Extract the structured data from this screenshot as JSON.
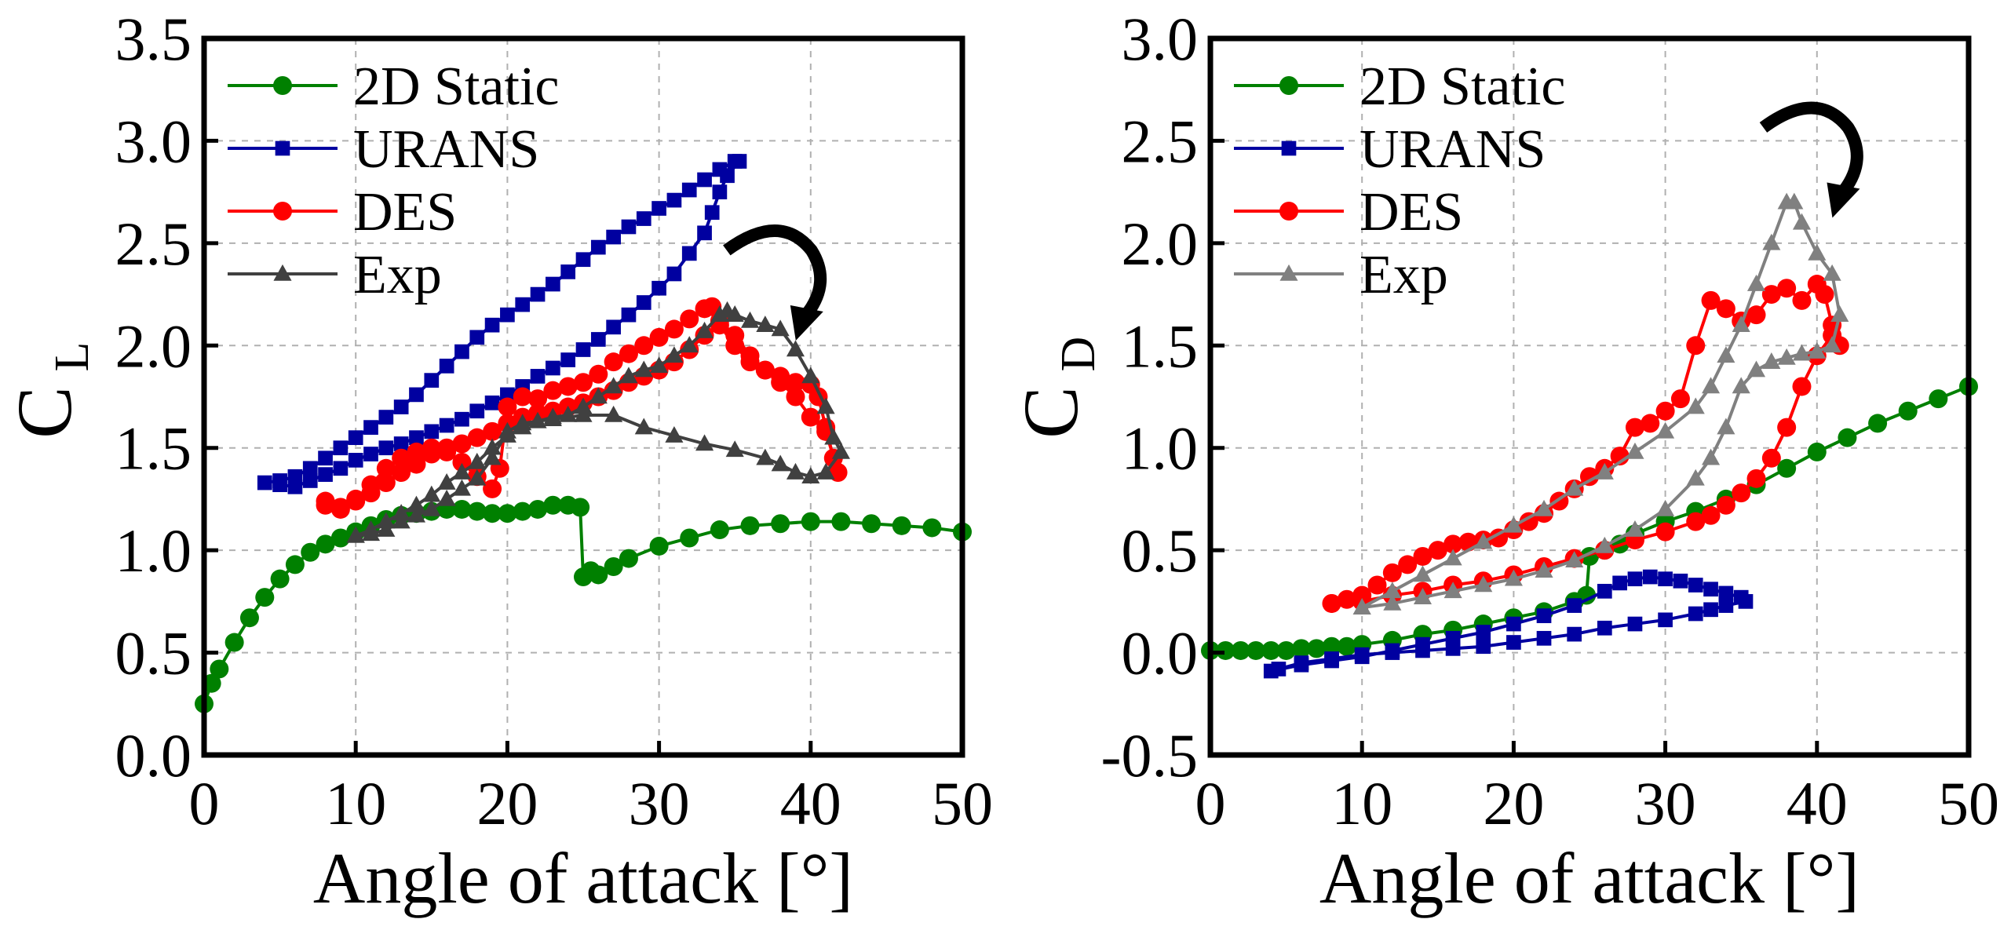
{
  "chart_data": [
    {
      "type": "line",
      "xlabel": "Angle of attack [°]",
      "ylabel": "C",
      "ylabel_sub": "L",
      "xlim": [
        0,
        50
      ],
      "ylim": [
        0,
        3.5
      ],
      "xticks": [
        "0",
        "10",
        "20",
        "30",
        "40",
        "50"
      ],
      "yticks": [
        "0.0",
        "0.5",
        "1.0",
        "1.5",
        "2.0",
        "2.5",
        "3.0",
        "3.5"
      ],
      "grid": true,
      "legend_position": "top-left",
      "annotation": "clockwise-arrow",
      "series": [
        {
          "name": "2D Static",
          "color": "#008000",
          "marker": "circle",
          "x": [
            0,
            0.5,
            1,
            2,
            3,
            4,
            5,
            6,
            7,
            8,
            9,
            10,
            11,
            12,
            13,
            14,
            15,
            16,
            17,
            18,
            19,
            20,
            21,
            22,
            23,
            24,
            24.8,
            25,
            25.5,
            26,
            27,
            28,
            30,
            32,
            34,
            36,
            38,
            40,
            42,
            44,
            46,
            48,
            50
          ],
          "y": [
            0.25,
            0.35,
            0.42,
            0.55,
            0.67,
            0.77,
            0.86,
            0.93,
            0.99,
            1.03,
            1.06,
            1.09,
            1.12,
            1.15,
            1.17,
            1.18,
            1.19,
            1.2,
            1.2,
            1.19,
            1.18,
            1.18,
            1.19,
            1.2,
            1.22,
            1.22,
            1.21,
            0.87,
            0.9,
            0.88,
            0.92,
            0.96,
            1.02,
            1.06,
            1.1,
            1.12,
            1.13,
            1.14,
            1.14,
            1.13,
            1.12,
            1.11,
            1.09
          ]
        },
        {
          "name": "URANS",
          "color": "#0000a0",
          "marker": "square",
          "x": [
            4,
            5,
            6,
            7,
            8,
            9,
            10,
            11,
            12,
            13,
            14,
            15,
            16,
            17,
            18,
            19,
            20,
            21,
            22,
            23,
            24,
            25,
            26,
            27,
            28,
            29,
            30,
            31,
            32,
            33,
            34,
            35,
            35.3,
            34.5,
            34,
            33.5,
            33,
            32,
            31,
            30,
            29,
            28,
            27,
            26,
            25,
            24,
            23,
            22,
            21,
            20,
            19,
            18,
            17,
            16,
            15,
            14,
            13,
            12,
            11,
            10,
            9,
            8,
            7,
            6,
            5
          ],
          "y": [
            1.33,
            1.34,
            1.36,
            1.4,
            1.45,
            1.5,
            1.55,
            1.6,
            1.65,
            1.7,
            1.76,
            1.83,
            1.9,
            1.97,
            2.04,
            2.1,
            2.15,
            2.2,
            2.25,
            2.3,
            2.36,
            2.42,
            2.48,
            2.53,
            2.58,
            2.62,
            2.67,
            2.71,
            2.76,
            2.81,
            2.86,
            2.9,
            2.9,
            2.83,
            2.75,
            2.65,
            2.55,
            2.45,
            2.35,
            2.28,
            2.21,
            2.15,
            2.09,
            2.03,
            1.98,
            1.93,
            1.89,
            1.85,
            1.8,
            1.76,
            1.72,
            1.68,
            1.64,
            1.61,
            1.58,
            1.55,
            1.52,
            1.5,
            1.47,
            1.44,
            1.4,
            1.37,
            1.34,
            1.31,
            1.32
          ]
        },
        {
          "name": "DES",
          "color": "#ff0000",
          "marker": "circle",
          "x": [
            8,
            9,
            10,
            11,
            12,
            13,
            14,
            15,
            16,
            17,
            18,
            19,
            19.5,
            20,
            21,
            22,
            23,
            24,
            25,
            26,
            27,
            28,
            29,
            30,
            31,
            32,
            33,
            33.5,
            34,
            35,
            36,
            37,
            38,
            39,
            40,
            40.5,
            41,
            41.5,
            41.8,
            41,
            40,
            39,
            38,
            37,
            36,
            35,
            34,
            33,
            32,
            31,
            30,
            29,
            28,
            27,
            26,
            25,
            24,
            23,
            22,
            21,
            20,
            19,
            18,
            17,
            16,
            15,
            14,
            13,
            12,
            11,
            10,
            9,
            8
          ],
          "y": [
            1.22,
            1.21,
            1.25,
            1.32,
            1.4,
            1.45,
            1.48,
            1.5,
            1.48,
            1.43,
            1.36,
            1.3,
            1.4,
            1.7,
            1.75,
            1.74,
            1.78,
            1.8,
            1.82,
            1.86,
            1.92,
            1.96,
            2.0,
            2.04,
            2.08,
            2.13,
            2.18,
            2.19,
            2.12,
            2.05,
            1.95,
            1.88,
            1.85,
            1.82,
            1.81,
            1.75,
            1.6,
            1.45,
            1.38,
            1.58,
            1.65,
            1.75,
            1.82,
            1.88,
            1.92,
            2.0,
            2.1,
            2.05,
            1.98,
            1.92,
            1.88,
            1.85,
            1.82,
            1.78,
            1.75,
            1.72,
            1.7,
            1.68,
            1.67,
            1.65,
            1.62,
            1.58,
            1.55,
            1.52,
            1.5,
            1.47,
            1.42,
            1.38,
            1.33,
            1.28,
            1.24,
            1.2,
            1.24
          ]
        },
        {
          "name": "Exp",
          "color": "#404040",
          "marker": "triangle",
          "x": [
            10,
            11,
            12,
            13,
            14,
            15,
            16,
            17,
            18,
            19,
            20,
            21,
            22,
            23,
            24,
            25,
            26,
            27,
            28,
            29,
            30,
            31,
            32,
            33,
            34,
            34.5,
            35,
            36,
            37,
            38,
            39,
            40,
            41,
            41.5,
            42,
            41,
            40,
            39,
            38,
            37,
            35,
            33,
            31,
            29,
            27,
            25,
            23,
            21,
            20,
            19,
            18,
            17,
            16,
            15,
            14,
            13,
            12,
            11,
            10
          ],
          "y": [
            1.07,
            1.1,
            1.14,
            1.18,
            1.22,
            1.27,
            1.33,
            1.38,
            1.43,
            1.5,
            1.56,
            1.6,
            1.63,
            1.65,
            1.66,
            1.7,
            1.75,
            1.8,
            1.85,
            1.88,
            1.9,
            1.95,
            2.0,
            2.07,
            2.15,
            2.17,
            2.15,
            2.12,
            2.1,
            2.08,
            1.98,
            1.85,
            1.7,
            1.55,
            1.48,
            1.38,
            1.36,
            1.38,
            1.42,
            1.45,
            1.49,
            1.52,
            1.56,
            1.6,
            1.66,
            1.66,
            1.64,
            1.62,
            1.58,
            1.45,
            1.35,
            1.3,
            1.25,
            1.2,
            1.17,
            1.14,
            1.1,
            1.08,
            1.07
          ]
        }
      ]
    },
    {
      "type": "line",
      "xlabel": "Angle of attack [°]",
      "ylabel": "C",
      "ylabel_sub": "D",
      "xlim": [
        0,
        50
      ],
      "ylim": [
        -0.5,
        3.0
      ],
      "xticks": [
        "0",
        "10",
        "20",
        "30",
        "40",
        "50"
      ],
      "yticks": [
        "-0.5",
        "0.0",
        "0.5",
        "1.0",
        "1.5",
        "2.0",
        "2.5",
        "3.0"
      ],
      "grid": true,
      "legend_position": "top-left",
      "annotation": "clockwise-arrow",
      "series": [
        {
          "name": "2D Static",
          "color": "#008000",
          "marker": "circle",
          "x": [
            0,
            1,
            2,
            3,
            4,
            5,
            6,
            7,
            8,
            9,
            10,
            12,
            14,
            16,
            18,
            20,
            22,
            24,
            24.8,
            25,
            26,
            27,
            28,
            30,
            32,
            34,
            36,
            38,
            40,
            42,
            44,
            46,
            48,
            50
          ],
          "y": [
            0.01,
            0.01,
            0.01,
            0.01,
            0.01,
            0.01,
            0.02,
            0.02,
            0.03,
            0.03,
            0.04,
            0.06,
            0.09,
            0.11,
            0.14,
            0.17,
            0.2,
            0.25,
            0.28,
            0.47,
            0.5,
            0.53,
            0.58,
            0.64,
            0.69,
            0.75,
            0.82,
            0.9,
            0.98,
            1.05,
            1.12,
            1.18,
            1.24,
            1.3
          ]
        },
        {
          "name": "URANS",
          "color": "#0000a0",
          "marker": "square",
          "x": [
            4,
            6,
            8,
            10,
            12,
            14,
            16,
            18,
            20,
            22,
            24,
            26,
            27,
            28,
            29,
            30,
            31,
            32,
            33,
            34,
            35,
            35.3,
            34,
            33,
            32,
            30,
            28,
            26,
            24,
            22,
            20,
            18,
            16,
            14,
            12,
            10,
            8,
            6,
            4.5
          ],
          "y": [
            -0.09,
            -0.06,
            -0.04,
            -0.02,
            0.01,
            0.04,
            0.07,
            0.1,
            0.14,
            0.18,
            0.23,
            0.3,
            0.34,
            0.36,
            0.37,
            0.36,
            0.35,
            0.33,
            0.31,
            0.29,
            0.27,
            0.25,
            0.23,
            0.21,
            0.19,
            0.16,
            0.14,
            0.12,
            0.09,
            0.07,
            0.05,
            0.03,
            0.02,
            0.01,
            0,
            -0.01,
            -0.03,
            -0.05,
            -0.08
          ]
        },
        {
          "name": "DES",
          "color": "#ff0000",
          "marker": "circle",
          "x": [
            8,
            9,
            10,
            11,
            12,
            13,
            14,
            15,
            16,
            17,
            18,
            19,
            20,
            21,
            22,
            23,
            24,
            25,
            26,
            27,
            28,
            29,
            30,
            31,
            32,
            33,
            34,
            35,
            36,
            37,
            38,
            39,
            40,
            40.5,
            41,
            41.5,
            41,
            40,
            39,
            38,
            37,
            36,
            35,
            34,
            33,
            32,
            30,
            28,
            26,
            24,
            22,
            20,
            18,
            16,
            14,
            12,
            10,
            8
          ],
          "y": [
            0.24,
            0.26,
            0.28,
            0.33,
            0.39,
            0.43,
            0.47,
            0.5,
            0.53,
            0.54,
            0.55,
            0.56,
            0.6,
            0.64,
            0.68,
            0.74,
            0.8,
            0.86,
            0.9,
            0.96,
            1.1,
            1.12,
            1.18,
            1.24,
            1.5,
            1.72,
            1.68,
            1.62,
            1.65,
            1.75,
            1.78,
            1.72,
            1.8,
            1.75,
            1.6,
            1.5,
            1.55,
            1.45,
            1.3,
            1.1,
            0.95,
            0.85,
            0.78,
            0.72,
            0.67,
            0.64,
            0.59,
            0.55,
            0.5,
            0.46,
            0.42,
            0.38,
            0.35,
            0.33,
            0.3,
            0.28,
            0.25,
            0.24
          ]
        },
        {
          "name": "Exp",
          "color": "#808080",
          "marker": "triangle",
          "x": [
            10,
            12,
            14,
            16,
            18,
            20,
            22,
            24,
            26,
            28,
            30,
            32,
            33,
            34,
            35,
            36,
            37,
            38,
            38.5,
            39,
            40,
            41,
            41.5,
            41,
            40,
            39,
            38,
            37,
            36,
            35,
            34,
            33,
            32,
            30,
            28,
            26,
            24,
            22,
            20,
            18,
            16,
            14,
            12,
            10
          ],
          "y": [
            0.22,
            0.3,
            0.38,
            0.46,
            0.54,
            0.62,
            0.7,
            0.8,
            0.88,
            0.98,
            1.08,
            1.2,
            1.3,
            1.45,
            1.6,
            1.8,
            2.0,
            2.2,
            2.2,
            2.1,
            1.95,
            1.85,
            1.65,
            1.5,
            1.47,
            1.46,
            1.44,
            1.42,
            1.38,
            1.3,
            1.1,
            0.95,
            0.85,
            0.7,
            0.6,
            0.52,
            0.45,
            0.4,
            0.36,
            0.33,
            0.3,
            0.27,
            0.24,
            0.22
          ]
        }
      ]
    }
  ]
}
